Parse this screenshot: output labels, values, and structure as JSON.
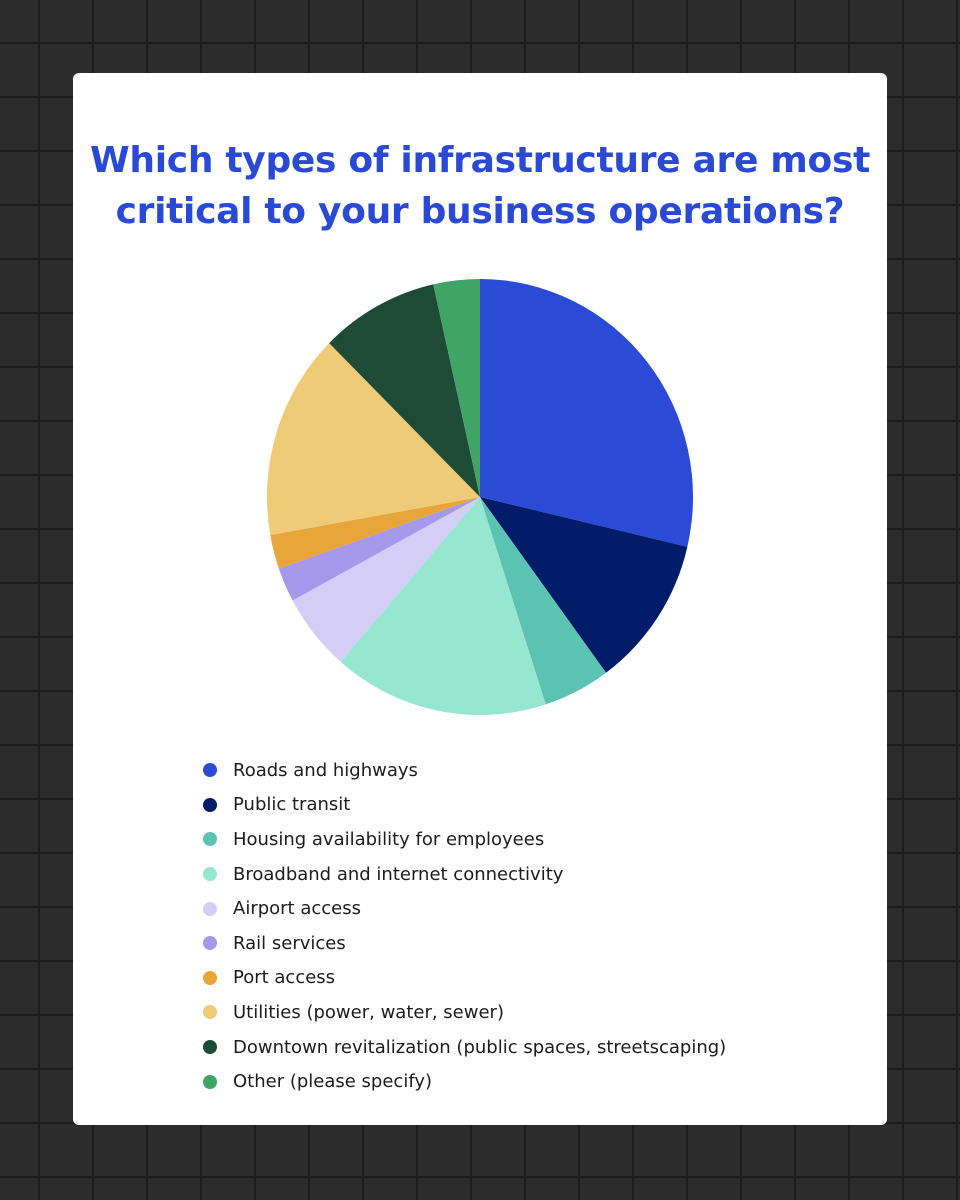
{
  "chart_data": {
    "type": "pie",
    "title_lines": [
      "Which types of infrastructure are most",
      "critical to your business operations?"
    ],
    "categories": [
      "Roads and highways",
      "Public transit",
      "Housing availability for employees",
      "Broadband and internet connectivity",
      "Airport access",
      "Rail services",
      "Port access",
      "Utilities (power, water, sewer)",
      "Downtown revitalization (public spaces, streetscaping)",
      "Other (please specify)"
    ],
    "values": [
      29.3,
      11.5,
      5.2,
      16.7,
      5.9,
      2.6,
      2.6,
      15.6,
      9.2,
      3.6
    ],
    "colors": [
      "#2b4ad6",
      "#011c69",
      "#5cc3b3",
      "#97e6cf",
      "#d4cdf6",
      "#a699eb",
      "#e8a63a",
      "#efcb77",
      "#1d4b35",
      "#3fa465"
    ],
    "legend_position": "bottom"
  }
}
